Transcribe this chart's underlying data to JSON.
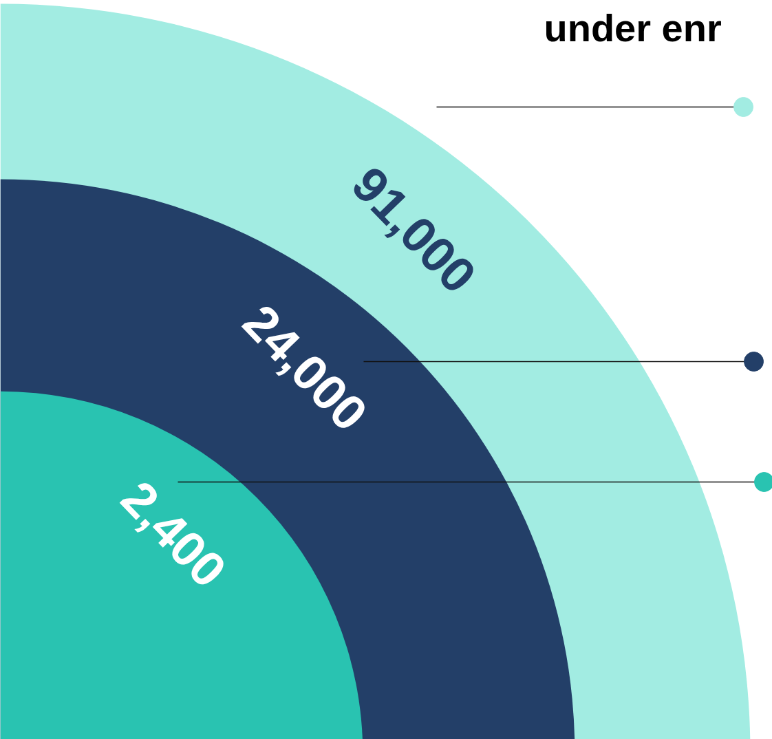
{
  "chart_data": {
    "type": "other",
    "title": "under enr",
    "categories": [
      null,
      null,
      null
    ],
    "values": [
      91000,
      24000,
      2400
    ],
    "value_labels": [
      "91,000",
      "24,000",
      "2,400"
    ],
    "colors": [
      "#a2ece2",
      "#233f68",
      "#29c3b1"
    ]
  }
}
